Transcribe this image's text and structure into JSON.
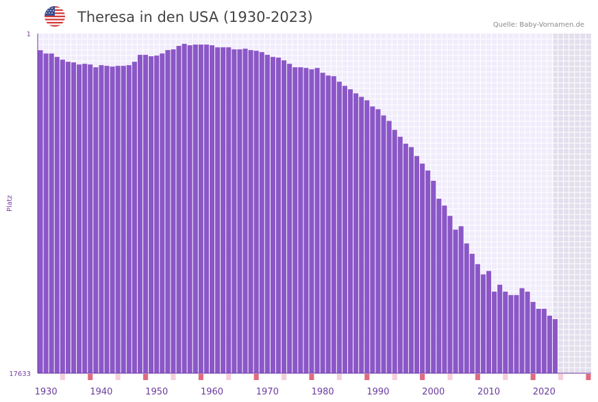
{
  "header": {
    "title": "Theresa in den USA (1930-2023)",
    "source": "Quelle: Baby-Vornamen.de",
    "flag_icon": "us-flag-icon"
  },
  "colors": {
    "bar": "#8b57c7",
    "grid_bg": "#f1ecfb",
    "grid_line": "#ffffff",
    "future_bg": "#e3dfec",
    "axis": "#6a3a9e",
    "marker_strong": "#e06b80",
    "marker_light": "#f6cfd8"
  },
  "chart_data": {
    "type": "bar",
    "title": "Theresa in den USA (1930-2023)",
    "xlabel": "",
    "ylabel": "Platz",
    "y_inverted": true,
    "ylim": [
      1,
      17633
    ],
    "y_ticks": [
      "1",
      "17633"
    ],
    "x_range": [
      1929,
      2028
    ],
    "x_ticks": [
      "1930",
      "1940",
      "1950",
      "1960",
      "1970",
      "1980",
      "1990",
      "2000",
      "2010",
      "2020"
    ],
    "x": [
      1929,
      1930,
      1931,
      1932,
      1933,
      1934,
      1935,
      1936,
      1937,
      1938,
      1939,
      1940,
      1941,
      1942,
      1943,
      1944,
      1945,
      1946,
      1947,
      1948,
      1949,
      1950,
      1951,
      1952,
      1953,
      1954,
      1955,
      1956,
      1957,
      1958,
      1959,
      1960,
      1961,
      1962,
      1963,
      1964,
      1965,
      1966,
      1967,
      1968,
      1969,
      1970,
      1971,
      1972,
      1973,
      1974,
      1975,
      1976,
      1977,
      1978,
      1979,
      1980,
      1981,
      1982,
      1983,
      1984,
      1985,
      1986,
      1987,
      1988,
      1989,
      1990,
      1991,
      1992,
      1993,
      1994,
      1995,
      1996,
      1997,
      1998,
      1999,
      2000,
      2001,
      2002,
      2003,
      2004,
      2005,
      2006,
      2007,
      2008,
      2009,
      2010,
      2011,
      2012,
      2013,
      2014,
      2015,
      2016,
      2017,
      2018,
      2019,
      2020,
      2021,
      2022
    ],
    "values": [
      865,
      1037,
      1037,
      1214,
      1357,
      1464,
      1499,
      1607,
      1571,
      1607,
      1750,
      1643,
      1679,
      1714,
      1679,
      1679,
      1643,
      1464,
      1107,
      1107,
      1179,
      1143,
      1037,
      858,
      822,
      643,
      537,
      608,
      572,
      572,
      572,
      608,
      715,
      715,
      715,
      822,
      822,
      786,
      858,
      893,
      965,
      1107,
      1214,
      1250,
      1393,
      1571,
      1750,
      1750,
      1786,
      1857,
      1786,
      2036,
      2179,
      2214,
      2500,
      2714,
      2893,
      3107,
      3286,
      3465,
      3786,
      3929,
      4251,
      4536,
      5000,
      5358,
      5715,
      5894,
      6358,
      6751,
      7109,
      7644,
      8573,
      8930,
      9466,
      10180,
      10002,
      10895,
      11431,
      11967,
      12503,
      12324,
      13396,
      13039,
      13396,
      13575,
      13575,
      13217,
      13396,
      13932,
      14289,
      14289,
      14646,
      14825
    ]
  }
}
